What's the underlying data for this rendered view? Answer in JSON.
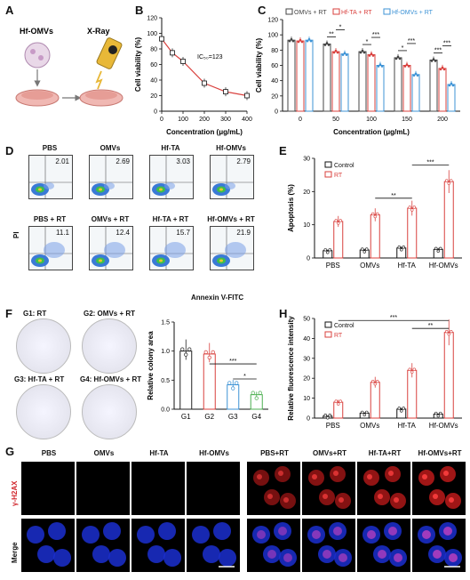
{
  "panels": {
    "A": "A",
    "B": "B",
    "C": "C",
    "D": "D",
    "E": "E",
    "F": "F",
    "G": "G",
    "H": "H"
  },
  "panelA": {
    "label1": "Hf-OMVs",
    "label2": "X-Ray"
  },
  "panelB": {
    "ylabel": "Cell viability (%)",
    "xlabel": "Concentration (μg/mL)",
    "annotation": "IC₅₀=123",
    "chart_data": {
      "type": "line",
      "x": [
        0,
        50,
        100,
        200,
        300,
        400
      ],
      "y": [
        93,
        75,
        64,
        36,
        25,
        20
      ],
      "xlim": [
        0,
        400
      ],
      "ylim": [
        0,
        120
      ],
      "xticks": [
        "0",
        "100",
        "200",
        "300",
        "400"
      ],
      "yticks": [
        "0",
        "20",
        "40",
        "60",
        "80",
        "100",
        "120"
      ]
    }
  },
  "panelC": {
    "ylabel": "Cell viability (%)",
    "xlabel": "Concentration (μg/mL)",
    "chart_data": {
      "type": "bar",
      "categories": [
        "0",
        "50",
        "100",
        "150",
        "200"
      ],
      "ylim": [
        0,
        120
      ],
      "yticks": [
        "0",
        "20",
        "40",
        "60",
        "80",
        "100",
        "120"
      ],
      "series": [
        {
          "name": "OMVs + RT",
          "values": [
            93,
            88,
            78,
            70,
            67
          ]
        },
        {
          "name": "Hf-TA + RT",
          "values": [
            92,
            78,
            74,
            60,
            56
          ]
        },
        {
          "name": "Hf-OMVs + RT",
          "values": [
            93,
            75,
            60,
            48,
            35
          ]
        }
      ],
      "sig": [
        "**",
        "*",
        "*",
        "***",
        "*",
        "***",
        "***",
        "***"
      ]
    },
    "colors": [
      "#444444",
      "#d9413e",
      "#3d93d6"
    ]
  },
  "panelD": {
    "ylabel": "PI",
    "xlabel": "Annexin V-FITC",
    "plots": [
      {
        "title": "PBS",
        "value": "2.01"
      },
      {
        "title": "OMVs",
        "value": "2.69"
      },
      {
        "title": "Hf-TA",
        "value": "3.03"
      },
      {
        "title": "Hf-OMVs",
        "value": "2.79"
      },
      {
        "title": "PBS + RT",
        "value": "11.1"
      },
      {
        "title": "OMVs + RT",
        "value": "12.4"
      },
      {
        "title": "Hf-TA + RT",
        "value": "15.7"
      },
      {
        "title": "Hf-OMVs + RT",
        "value": "21.9"
      }
    ]
  },
  "panelE": {
    "ylabel": "Apoptosis (%)",
    "legend": [
      "Control",
      "RT"
    ],
    "chart_data": {
      "type": "bar",
      "categories": [
        "PBS",
        "OMVs",
        "Hf-TA",
        "Hf-OMVs"
      ],
      "ylim": [
        0,
        30
      ],
      "yticks": [
        "0",
        "10",
        "20",
        "30"
      ],
      "series": [
        {
          "name": "Control",
          "values": [
            2.2,
            2.4,
            3.0,
            2.6
          ]
        },
        {
          "name": "RT",
          "values": [
            11,
            13,
            15,
            23
          ]
        }
      ],
      "sig": [
        "**",
        "***"
      ]
    }
  },
  "panelF": {
    "ylabel": "Relative colony area",
    "dishes": [
      {
        "label": "G1: RT"
      },
      {
        "label": "G2: OMVs + RT"
      },
      {
        "label": "G3: Hf-TA + RT"
      },
      {
        "label": "G4: Hf-OMVs + RT"
      }
    ],
    "chart_data": {
      "type": "bar",
      "categories": [
        "G1",
        "G2",
        "G3",
        "G4"
      ],
      "values": [
        1.0,
        0.95,
        0.42,
        0.25
      ],
      "ylim": [
        0,
        1.5
      ],
      "yticks": [
        "0.0",
        "0.5",
        "1.0",
        "1.5"
      ],
      "sig": [
        "***",
        "*"
      ]
    },
    "colors": [
      "#222222",
      "#d9413e",
      "#3d93d6",
      "#4caf50"
    ]
  },
  "panelG": {
    "titles": [
      "PBS",
      "OMVs",
      "Hf-TA",
      "Hf-OMVs",
      "PBS+RT",
      "OMVs+RT",
      "Hf-TA+RT",
      "Hf-OMVs+RT"
    ],
    "rows": [
      "γ-H2AX",
      "Merge"
    ]
  },
  "panelH": {
    "ylabel": "Relative fluorescence intensity",
    "legend": [
      "Control",
      "RT"
    ],
    "chart_data": {
      "type": "bar",
      "categories": [
        "PBS",
        "OMVs",
        "Hf-TA",
        "Hf-OMVs"
      ],
      "ylim": [
        0,
        50
      ],
      "yticks": [
        "0",
        "10",
        "20",
        "30",
        "40",
        "50"
      ],
      "series": [
        {
          "name": "Control",
          "values": [
            1.0,
            2.5,
            4.5,
            2.0
          ]
        },
        {
          "name": "RT",
          "values": [
            8,
            18,
            24,
            43
          ]
        }
      ],
      "sig": [
        "***",
        "**"
      ]
    }
  }
}
